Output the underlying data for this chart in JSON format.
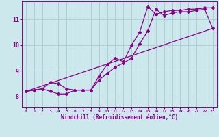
{
  "xlabel": "Windchill (Refroidissement éolien,°C)",
  "bg_color": "#cce8ec",
  "grid_color": "#aacccc",
  "line_color": "#880088",
  "xlim": [
    -0.5,
    23.5
  ],
  "ylim": [
    7.6,
    11.7
  ],
  "yticks": [
    8,
    9,
    10,
    11
  ],
  "xticks": [
    0,
    1,
    2,
    3,
    4,
    5,
    6,
    7,
    8,
    9,
    10,
    11,
    12,
    13,
    14,
    15,
    16,
    17,
    18,
    19,
    20,
    21,
    22,
    23
  ],
  "series1_x": [
    0,
    1,
    2,
    3,
    4,
    5,
    6,
    7,
    8,
    9,
    10,
    11,
    12,
    13,
    14,
    15,
    16,
    17,
    18,
    19,
    20,
    21,
    22,
    23
  ],
  "series1_y": [
    8.2,
    8.25,
    8.3,
    8.55,
    8.5,
    8.3,
    8.25,
    8.25,
    8.25,
    8.65,
    8.9,
    9.15,
    9.3,
    9.5,
    10.05,
    10.55,
    11.4,
    11.15,
    11.25,
    11.3,
    11.3,
    11.35,
    11.4,
    10.65
  ],
  "series2_x": [
    0,
    1,
    2,
    3,
    4,
    5,
    6,
    7,
    8,
    9,
    10,
    11,
    12,
    13,
    14,
    15,
    16,
    17,
    18,
    19,
    20,
    21,
    22,
    23
  ],
  "series2_y": [
    8.2,
    8.25,
    8.3,
    8.2,
    8.1,
    8.1,
    8.25,
    8.25,
    8.25,
    8.8,
    9.25,
    9.5,
    9.35,
    10.0,
    10.5,
    11.5,
    11.2,
    11.3,
    11.35,
    11.35,
    11.4,
    11.4,
    11.45,
    11.45
  ],
  "series3_x": [
    0,
    23
  ],
  "series3_y": [
    8.2,
    10.65
  ],
  "markersize": 2.0,
  "linewidth": 0.9
}
